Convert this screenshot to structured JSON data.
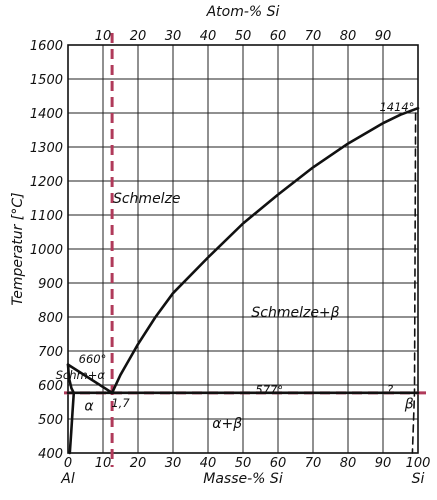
{
  "chart_data": {
    "type": "line",
    "xlabel_bottom": "Masse-% Si",
    "xlabel_top": "Atom-% Si",
    "ylabel": "Temperatur [°C]",
    "xlim": [
      0,
      100
    ],
    "ylim": [
      400,
      1600
    ],
    "x_ticks": [
      0,
      10,
      20,
      30,
      40,
      50,
      60,
      70,
      80,
      90,
      100
    ],
    "x_tick_labels": [
      "0",
      "10",
      "20",
      "30",
      "40",
      "50",
      "60",
      "70",
      "80",
      "90",
      "100"
    ],
    "top_ticks": [
      10,
      20,
      30,
      40,
      50,
      60,
      70,
      80,
      90
    ],
    "top_tick_labels": [
      "10",
      "20",
      "30",
      "40",
      "50",
      "60",
      "70",
      "80",
      "90"
    ],
    "y_ticks": [
      400,
      500,
      600,
      700,
      800,
      900,
      1000,
      1100,
      1200,
      1300,
      1400,
      1500,
      1600
    ],
    "y_tick_labels": [
      "400",
      "500",
      "600",
      "700",
      "800",
      "900",
      "1000",
      "1100",
      "1200",
      "1300",
      "1400",
      "1500",
      "1600"
    ],
    "grid": true,
    "series": [
      {
        "style": "solid",
        "x": [
          0,
          12.6
        ],
        "y": [
          660,
          577
        ]
      },
      {
        "style": "solid",
        "x": [
          12.6,
          15,
          20,
          25,
          30,
          40,
          50,
          60,
          70,
          80,
          90,
          95,
          100
        ],
        "y": [
          577,
          630,
          720,
          800,
          870,
          975,
          1075,
          1160,
          1240,
          1310,
          1370,
          1395,
          1414
        ]
      },
      {
        "style": "solid",
        "x": [
          0,
          0.3,
          1.0,
          1.65
        ],
        "y": [
          660,
          620,
          590,
          577
        ]
      },
      {
        "style": "solid",
        "x": [
          1.65,
          1.3,
          0.9,
          0.5
        ],
        "y": [
          577,
          520,
          460,
          400
        ]
      },
      {
        "style": "solid",
        "x": [
          0,
          100
        ],
        "y": [
          577,
          577
        ]
      },
      {
        "style": "dashed",
        "x": [
          99.3,
          99.0,
          98.4
        ],
        "y": [
          1400,
          577,
          400
        ]
      }
    ],
    "reference_lines": [
      {
        "orientation": "vertical",
        "x": 12.6,
        "color": "#b03a5a"
      },
      {
        "orientation": "horizontal",
        "y": 577,
        "color": "#b03a5a"
      }
    ],
    "annotations": [
      {
        "text": "Schmelze",
        "x": 22.5,
        "y": 1150,
        "kind": "region"
      },
      {
        "text": "Schmelze+β",
        "x": 65,
        "y": 815,
        "kind": "region"
      },
      {
        "text": "Schm+α",
        "x": 3.5,
        "y": 632,
        "kind": "small"
      },
      {
        "text": "660°",
        "x": 7,
        "y": 680,
        "kind": "small"
      },
      {
        "text": "α",
        "x": 6,
        "y": 540,
        "kind": "region"
      },
      {
        "text": "1,7",
        "x": 15,
        "y": 550,
        "kind": "small"
      },
      {
        "text": "577°",
        "x": 57.5,
        "y": 588,
        "kind": "small"
      },
      {
        "text": "α+β",
        "x": 45.5,
        "y": 488,
        "kind": "region"
      },
      {
        "text": "β",
        "x": 97.5,
        "y": 545,
        "kind": "region"
      },
      {
        "text": "?",
        "x": 92,
        "y": 590,
        "kind": "small"
      },
      {
        "text": "1414°",
        "x": 94,
        "y": 1420,
        "kind": "small"
      }
    ],
    "element_labels": [
      {
        "text": "Al",
        "x": 0
      },
      {
        "text": "Si",
        "x": 100
      }
    ]
  }
}
